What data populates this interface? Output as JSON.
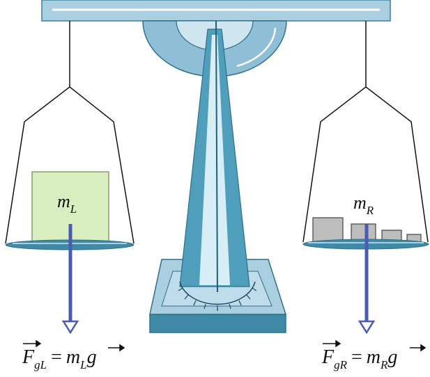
{
  "left_pan": {
    "mass_label": {
      "symbol": "m",
      "subscript": "L"
    },
    "equation": {
      "force": "F",
      "force_subscript": "gL",
      "equals": "=",
      "mass": "m",
      "mass_subscript": "L",
      "gravity": "g"
    }
  },
  "right_pan": {
    "mass_label": {
      "symbol": "m",
      "subscript": "R"
    },
    "equation": {
      "force": "F",
      "force_subscript": "gR",
      "equals": "=",
      "mass": "m",
      "mass_subscript": "R",
      "gravity": "g"
    }
  }
}
